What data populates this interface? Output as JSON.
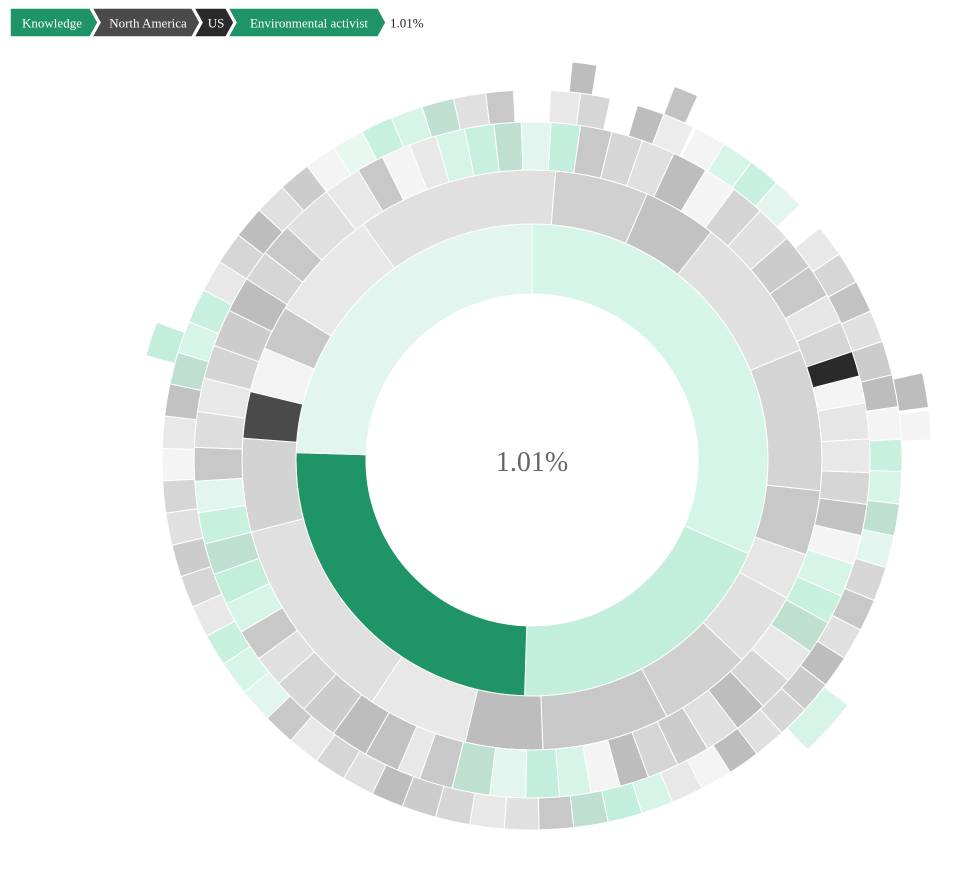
{
  "breadcrumb": {
    "items": [
      {
        "label": "Knowledge",
        "color": "#1f9467"
      },
      {
        "label": "North America",
        "color": "#4a4a4a"
      },
      {
        "label": "US",
        "color": "#2a2a2a"
      },
      {
        "label": "Environmental activist",
        "color": "#1f9467"
      }
    ],
    "percentage": "1.01%"
  },
  "center": {
    "percentage": "1.01%"
  },
  "chart_data": {
    "type": "sunburst",
    "highlighted_path": [
      "Knowledge",
      "North America",
      "US",
      "Environmental activist"
    ],
    "highlighted_share_percent": 1.01,
    "ring1": [
      {
        "value": 31.5,
        "color": "#d5f5e8"
      },
      {
        "value": 19,
        "color": "#c2eedb"
      },
      {
        "value": 25,
        "color": "#1f9467"
      },
      {
        "value": 24.5,
        "color": "#e2f6ef"
      }
    ],
    "ring2": [
      {
        "value": 8.2,
        "color": "#e8e8e8"
      },
      {
        "value": 10.6,
        "color": "#e0e0e0"
      },
      {
        "value": 7.9,
        "color": "#d4d4d4"
      },
      {
        "value": 3.6,
        "color": "#c8c8c8"
      },
      {
        "value": 2.6,
        "color": "#e6e6e6"
      },
      {
        "value": 4.2,
        "color": "#e0e0e0"
      },
      {
        "value": 5.2,
        "color": "#d0d0d0"
      },
      {
        "value": 7.1,
        "color": "#c8c8c8"
      },
      {
        "value": 4.3,
        "color": "#bdbdbd"
      },
      {
        "value": 5.6,
        "color": "#e8e8e8"
      },
      {
        "value": 11.7,
        "color": "#e0e0e0"
      },
      {
        "value": 5.2,
        "color": "#d3d3d3"
      },
      {
        "value": 2.6,
        "color": "#4a4a4a"
      },
      {
        "value": 2.5,
        "color": "#f3f3f3"
      },
      {
        "value": 2.5,
        "color": "#c8c8c8"
      },
      {
        "value": 6.3,
        "color": "#e8e8e8"
      },
      {
        "value": 11.2,
        "color": "#e0e0e0"
      },
      {
        "value": 5.2,
        "color": "#d0d0d0"
      },
      {
        "value": 4.1,
        "color": "#c2c2c2"
      }
    ],
    "ring3": [
      {
        "value": 4.6,
        "color": "#e8e8e8"
      },
      {
        "value": 1.2,
        "color": "#e0e0e0"
      },
      {
        "value": 1.3,
        "color": "#d6d6d6"
      },
      {
        "value": 1.4,
        "color": "#cccccc"
      },
      {
        "value": 1.4,
        "color": "#c2c2c2"
      },
      {
        "value": 1.1,
        "color": "#f4f4f4"
      },
      {
        "value": 1.4,
        "color": "#c8f0de"
      },
      {
        "value": 1.5,
        "color": "#d5f5e8"
      },
      {
        "value": 1.6,
        "color": "#c8f0de"
      },
      {
        "value": 1.6,
        "color": "#e8f8f1"
      },
      {
        "value": 1.6,
        "color": "#bfe0d1"
      },
      {
        "value": 1.6,
        "color": "#e8e8e8"
      },
      {
        "value": 1.5,
        "color": "#e0e0e0"
      },
      {
        "value": 1.6,
        "color": "#d6d6d6"
      },
      {
        "value": 1.6,
        "color": "#cccccc"
      },
      {
        "value": 1.6,
        "color": "#bdbdbd"
      },
      {
        "value": 1.7,
        "color": "#e8e8e8"
      },
      {
        "value": 1.6,
        "color": "#d6d6d6"
      },
      {
        "value": 1.7,
        "color": "#c2c2c2"
      },
      {
        "value": 1.7,
        "color": "#bdbdbd"
      },
      {
        "value": 1.6,
        "color": "#f4f4f4"
      },
      {
        "value": 1.8,
        "color": "#c8f0de"
      },
      {
        "value": 1.8,
        "color": "#d5f5e8"
      },
      {
        "value": 1.8,
        "color": "#bfe0d1"
      },
      {
        "value": 1.8,
        "color": "#e2f6ef"
      },
      {
        "value": 1.8,
        "color": "#c8c8c8"
      },
      {
        "value": 1.7,
        "color": "#bdbdbd"
      },
      {
        "value": 1.8,
        "color": "#e8e8e8"
      },
      {
        "value": 1.9,
        "color": "#c2c2c2"
      },
      {
        "value": 1.8,
        "color": "#d6d6d6"
      },
      {
        "value": 1.8,
        "color": "#f4f4f4"
      },
      {
        "value": 1.7,
        "color": "#e8e8e8"
      },
      {
        "value": 1.8,
        "color": "#d6d6d6"
      },
      {
        "value": 1.8,
        "color": "#c2c2c2"
      },
      {
        "value": 1.8,
        "color": "#bdbdbd"
      },
      {
        "value": 1.8,
        "color": "#cccccc"
      },
      {
        "value": 1.7,
        "color": "#d6d6d6"
      },
      {
        "value": 1.5,
        "color": "#e0e0e0"
      },
      {
        "value": 1.5,
        "color": "#c8c8c8"
      },
      {
        "value": 1.5,
        "color": "#d6f5e8"
      },
      {
        "value": 1.5,
        "color": "#c2eedb"
      },
      {
        "value": 1.5,
        "color": "#bfe0d1"
      },
      {
        "value": 1.5,
        "color": "#c8f0de"
      },
      {
        "value": 1.5,
        "color": "#e2f6ef"
      },
      {
        "value": 1.6,
        "color": "#c8c8c8"
      },
      {
        "value": 1.7,
        "color": "#dddddd"
      },
      {
        "value": 1.6,
        "color": "#e8e8e8"
      },
      {
        "value": 1.6,
        "color": "#d4d4d4"
      },
      {
        "value": 1.8,
        "color": "#cccccc"
      },
      {
        "value": 1.7,
        "color": "#bdbdbd"
      },
      {
        "value": 1.5,
        "color": "#d6d6d6"
      },
      {
        "value": 1.6,
        "color": "#c8c8c8"
      },
      {
        "value": 2.5,
        "color": "#e0e0e0"
      },
      {
        "value": 1.8,
        "color": "#e8e8e8"
      },
      {
        "value": 1.3,
        "color": "#c8c8c8"
      },
      {
        "value": 1.4,
        "color": "#f4f4f4"
      },
      {
        "value": 1.3,
        "color": "#e8e8e8"
      },
      {
        "value": 1.4,
        "color": "#d6f5e8"
      },
      {
        "value": 1.4,
        "color": "#c8f0de"
      },
      {
        "value": 1.3,
        "color": "#bfe0d1"
      },
      {
        "value": 1.4,
        "color": "#e2f6ef"
      },
      {
        "value": 1.4,
        "color": "#c2eedb"
      },
      {
        "value": 1.5,
        "color": "#c8c8c8"
      },
      {
        "value": 1.5,
        "color": "#d6d6d6"
      },
      {
        "value": 1.6,
        "color": "#e0e0e0"
      },
      {
        "value": 1.7,
        "color": "#bdbdbd"
      },
      {
        "value": 1.6,
        "color": "#f4f4f4"
      },
      {
        "value": 1.6,
        "color": "#d4d4d4"
      },
      {
        "value": 1.8,
        "color": "#e0e0e0"
      },
      {
        "value": 1.7,
        "color": "#cccccc"
      },
      {
        "value": 1.6,
        "color": "#c8c8c8"
      },
      {
        "value": 1.4,
        "color": "#e6e6e6"
      },
      {
        "value": 1.5,
        "color": "#d6d6d6"
      },
      {
        "value": 1.2,
        "color": "#2a2a2a"
      },
      {
        "value": 1.3,
        "color": "#f4f4f4"
      },
      {
        "value": 1.7,
        "color": "#e6e6e6"
      },
      {
        "value": 1.6,
        "color": "#e8e8e8"
      },
      {
        "value": 1.5,
        "color": "#d6d6d6"
      },
      {
        "value": 1.5,
        "color": "#c2c2c2"
      },
      {
        "value": 1.4,
        "color": "#f4f4f4"
      },
      {
        "value": 1.6,
        "color": "#d6f5e8"
      },
      {
        "value": 1.4,
        "color": "#c8f0de"
      },
      {
        "value": 1.6,
        "color": "#bfe0d1"
      },
      {
        "value": 1.7,
        "color": "#e8e8e8"
      },
      {
        "value": 1.7,
        "color": "#d6d6d6"
      },
      {
        "value": 1.6,
        "color": "#bdbdbd"
      },
      {
        "value": 1.7,
        "color": "#e0e0e0"
      },
      {
        "value": 1.6,
        "color": "#cccccc"
      },
      {
        "value": 1.5,
        "color": "#d6d6d6"
      },
      {
        "value": 1.4,
        "color": "#bdbdbd"
      },
      {
        "value": 1.4,
        "color": "#f4f4f4"
      },
      {
        "value": 1.5,
        "color": "#d6f5e8"
      },
      {
        "value": 1.6,
        "color": "#c2eedb"
      },
      {
        "value": 1.7,
        "color": "#e2f6ef"
      },
      {
        "value": 1.8,
        "color": "#bfe0d1"
      },
      {
        "value": 1.6,
        "color": "#c8c8c8"
      },
      {
        "value": 1.1,
        "color": "#e8e8e8"
      }
    ],
    "ring4": [
      {
        "start": 0.8,
        "value": 1.3,
        "color": "#e8e8e8"
      },
      {
        "start": 2.1,
        "value": 1.3,
        "color": "#d6d6d6"
      },
      {
        "start": 4.6,
        "value": 1.2,
        "color": "#bdbdbd"
      },
      {
        "start": 5.8,
        "value": 1.4,
        "color": "#ececec"
      },
      {
        "start": 7.3,
        "value": 1.4,
        "color": "#f4f4f4"
      },
      {
        "start": 8.7,
        "value": 1.4,
        "color": "#d6f5e8"
      },
      {
        "start": 10.1,
        "value": 1.4,
        "color": "#c8f0de"
      },
      {
        "start": 11.5,
        "value": 1.4,
        "color": "#e2f6ef"
      },
      {
        "start": 14.2,
        "value": 1.4,
        "color": "#e8e8e8"
      },
      {
        "start": 15.6,
        "value": 1.4,
        "color": "#d6d6d6"
      },
      {
        "start": 17.0,
        "value": 1.4,
        "color": "#c2c2c2"
      },
      {
        "start": 18.4,
        "value": 1.4,
        "color": "#e0e0e0"
      },
      {
        "start": 19.8,
        "value": 1.5,
        "color": "#cccccc"
      },
      {
        "start": 21.3,
        "value": 1.4,
        "color": "#bdbdbd"
      },
      {
        "start": 22.7,
        "value": 1.4,
        "color": "#f4f4f4"
      },
      {
        "start": 24.1,
        "value": 1.4,
        "color": "#c8f0de"
      },
      {
        "start": 25.5,
        "value": 1.4,
        "color": "#d6f5e8"
      },
      {
        "start": 26.9,
        "value": 1.4,
        "color": "#bfe0d1"
      },
      {
        "start": 28.3,
        "value": 1.4,
        "color": "#e2f6ef"
      },
      {
        "start": 29.7,
        "value": 1.5,
        "color": "#d6d6d6"
      },
      {
        "start": 31.2,
        "value": 1.4,
        "color": "#c8c8c8"
      },
      {
        "start": 32.6,
        "value": 1.4,
        "color": "#e0e0e0"
      },
      {
        "start": 34.0,
        "value": 1.4,
        "color": "#bdbdbd"
      },
      {
        "start": 35.4,
        "value": 1.4,
        "color": "#cccccc"
      },
      {
        "start": 36.8,
        "value": 1.4,
        "color": "#d6d6d6"
      },
      {
        "start": 38.2,
        "value": 1.4,
        "color": "#e0e0e0"
      },
      {
        "start": 39.6,
        "value": 1.4,
        "color": "#bdbdbd"
      },
      {
        "start": 41.0,
        "value": 1.4,
        "color": "#f4f4f4"
      },
      {
        "start": 42.4,
        "value": 1.4,
        "color": "#e8e8e8"
      },
      {
        "start": 43.8,
        "value": 1.4,
        "color": "#d6f5e8"
      },
      {
        "start": 45.2,
        "value": 1.5,
        "color": "#c2eedb"
      },
      {
        "start": 46.7,
        "value": 1.5,
        "color": "#bfe0d1"
      },
      {
        "start": 48.2,
        "value": 1.5,
        "color": "#c8c8c8"
      },
      {
        "start": 49.7,
        "value": 1.5,
        "color": "#e0e0e0"
      },
      {
        "start": 51.2,
        "value": 1.5,
        "color": "#e8e8e8"
      },
      {
        "start": 52.7,
        "value": 1.5,
        "color": "#d6d6d6"
      },
      {
        "start": 54.2,
        "value": 1.5,
        "color": "#cccccc"
      },
      {
        "start": 55.7,
        "value": 1.4,
        "color": "#bdbdbd"
      },
      {
        "start": 57.1,
        "value": 1.4,
        "color": "#e0e0e0"
      },
      {
        "start": 58.5,
        "value": 1.4,
        "color": "#d6d6d6"
      },
      {
        "start": 59.9,
        "value": 1.4,
        "color": "#e8e8e8"
      },
      {
        "start": 61.3,
        "value": 1.4,
        "color": "#c8c8c8"
      },
      {
        "start": 62.7,
        "value": 1.5,
        "color": "#e2f6ef"
      },
      {
        "start": 64.2,
        "value": 1.5,
        "color": "#d6f5e8"
      },
      {
        "start": 65.7,
        "value": 1.4,
        "color": "#c8f0de"
      },
      {
        "start": 67.1,
        "value": 1.4,
        "color": "#e8e8e8"
      },
      {
        "start": 68.5,
        "value": 1.4,
        "color": "#d6d6d6"
      },
      {
        "start": 69.9,
        "value": 1.4,
        "color": "#cccccc"
      },
      {
        "start": 71.3,
        "value": 1.4,
        "color": "#e0e0e0"
      },
      {
        "start": 72.7,
        "value": 1.4,
        "color": "#d6d6d6"
      },
      {
        "start": 74.1,
        "value": 1.4,
        "color": "#f4f4f4"
      },
      {
        "start": 75.5,
        "value": 1.4,
        "color": "#e8e8e8"
      },
      {
        "start": 76.9,
        "value": 1.4,
        "color": "#c2c2c2"
      },
      {
        "start": 78.3,
        "value": 1.4,
        "color": "#bfe0d1"
      },
      {
        "start": 79.7,
        "value": 1.4,
        "color": "#d6f5e8"
      },
      {
        "start": 81.1,
        "value": 1.5,
        "color": "#c8f0de"
      },
      {
        "start": 82.6,
        "value": 1.4,
        "color": "#e8e8e8"
      },
      {
        "start": 84.0,
        "value": 1.4,
        "color": "#d6d6d6"
      },
      {
        "start": 85.4,
        "value": 1.4,
        "color": "#bdbdbd"
      },
      {
        "start": 86.8,
        "value": 1.4,
        "color": "#e0e0e0"
      },
      {
        "start": 88.2,
        "value": 1.4,
        "color": "#cccccc"
      },
      {
        "start": 89.6,
        "value": 1.4,
        "color": "#f4f4f4"
      },
      {
        "start": 91.0,
        "value": 1.4,
        "color": "#e8f8f1"
      },
      {
        "start": 92.4,
        "value": 1.4,
        "color": "#c8f0de"
      },
      {
        "start": 93.8,
        "value": 1.4,
        "color": "#d6f5e8"
      },
      {
        "start": 95.2,
        "value": 1.4,
        "color": "#bfe0d1"
      },
      {
        "start": 96.6,
        "value": 1.4,
        "color": "#e0e0e0"
      },
      {
        "start": 98.0,
        "value": 1.2,
        "color": "#c8c8c8"
      }
    ],
    "ring5": [
      {
        "start": 1.6,
        "value": 1.0,
        "color": "#bdbdbd"
      },
      {
        "start": 5.8,
        "value": 1.0,
        "color": "#c2c2c2"
      },
      {
        "start": 21.5,
        "value": 1.4,
        "color": "#bdbdbd"
      },
      {
        "start": 23.0,
        "value": 1.2,
        "color": "#f4f4f4"
      },
      {
        "start": 35.5,
        "value": 2.4,
        "color": "#d6f5e8"
      },
      {
        "start": 79.2,
        "value": 1.4,
        "color": "#c2eedb"
      }
    ]
  }
}
